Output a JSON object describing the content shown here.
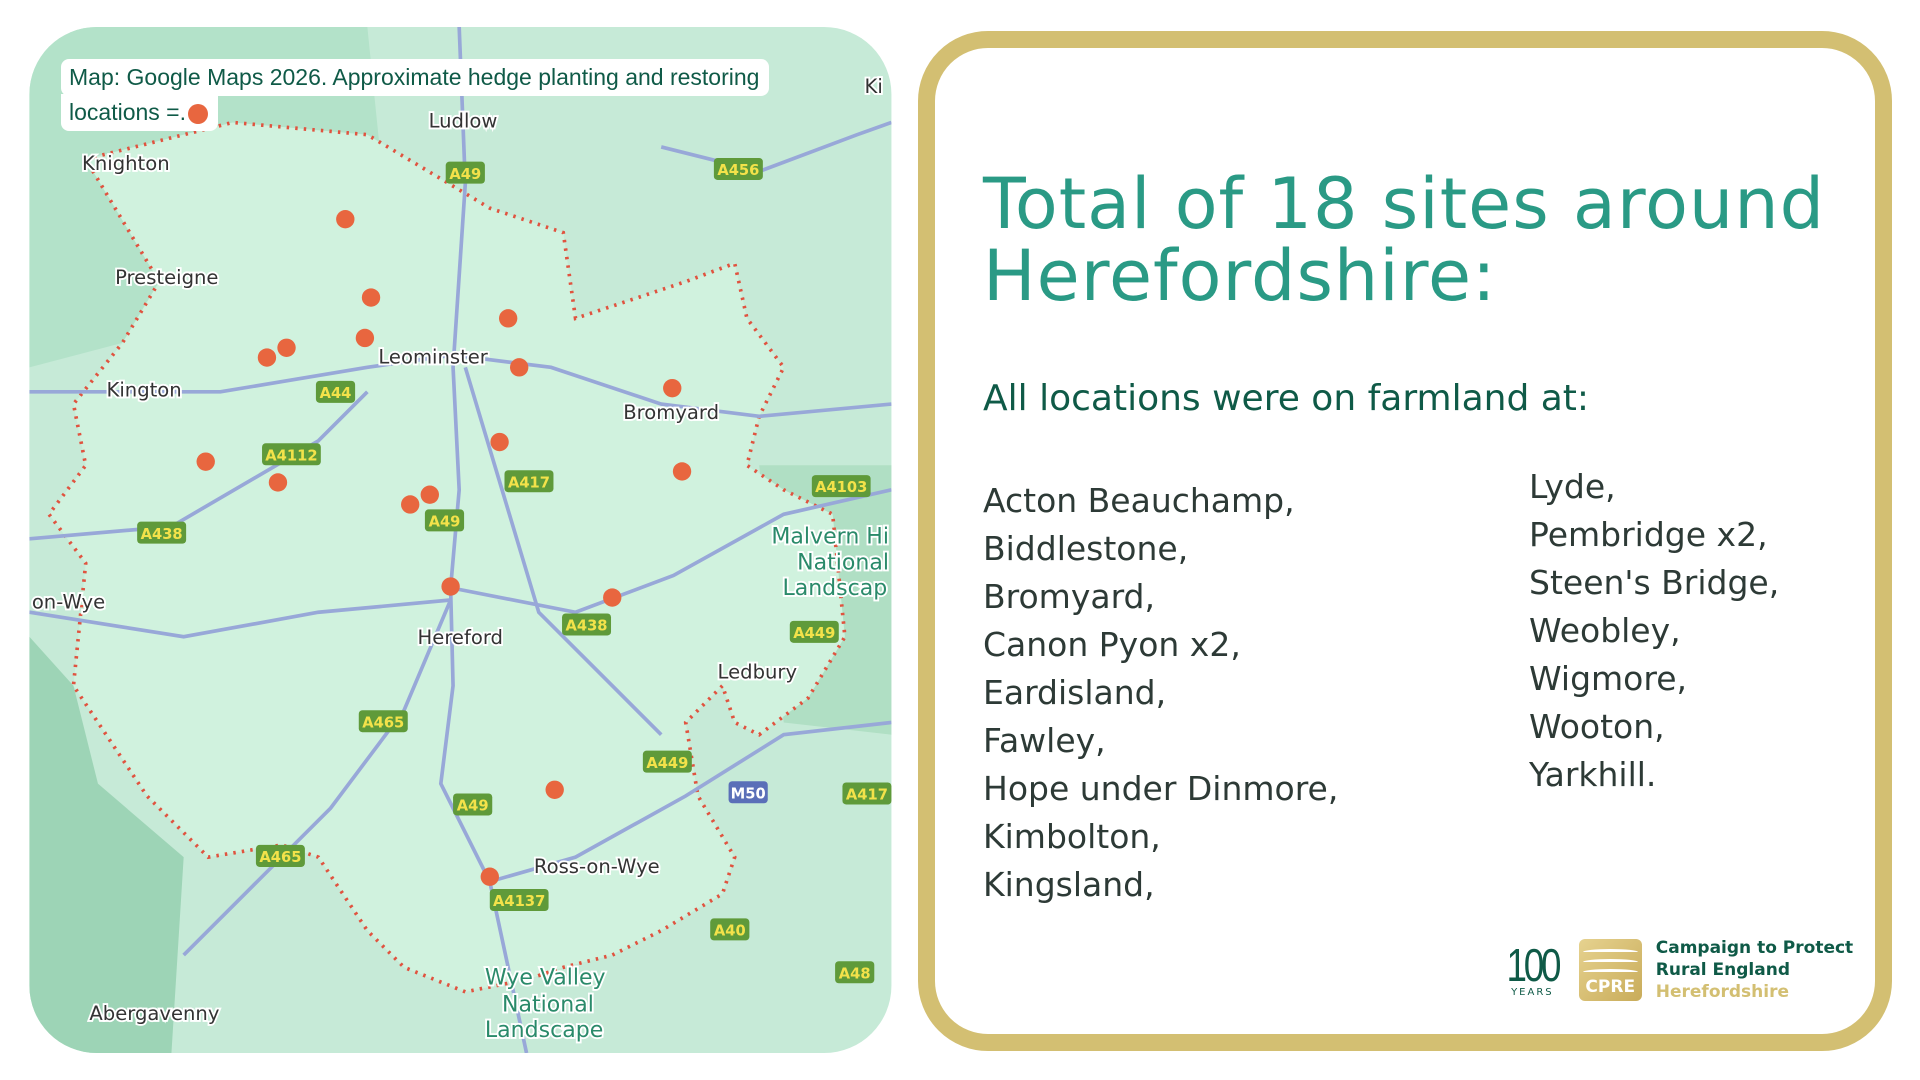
{
  "map": {
    "caption_line1": "Map: Google Maps 2026. Approximate hedge planting and restoring",
    "caption_line2": "locations =.",
    "marker_color": "#e8663f",
    "towns": [
      "Ludlow",
      "Knighton",
      "Presteigne",
      "Kington",
      "Leominster",
      "Bromyard",
      "Hereford",
      "Ledbury",
      "Ross-on-Wye",
      "Abergavenny",
      "on-Wye",
      "Ki",
      "Malvern Hi",
      "National",
      "Landscap",
      "Wye Valley",
      "National",
      "Landscape"
    ],
    "roads": [
      "A49",
      "A456",
      "A44",
      "A4112",
      "A417",
      "A438",
      "A49",
      "A438",
      "A4103",
      "A449",
      "A465",
      "A449",
      "M50",
      "A49",
      "A465",
      "A4137",
      "A417",
      "A40",
      "A48"
    ],
    "site_count": 18
  },
  "panel": {
    "title_line1": "Total of 18 sites around",
    "title_line2": "Herefordshire:",
    "subtitle": "All locations were on farmland at:",
    "column1": [
      "Acton Beauchamp,",
      "Biddlestone,",
      "Bromyard,",
      "Canon Pyon x2,",
      "Eardisland,",
      "Fawley,",
      "Hope under Dinmore,",
      "Kimbolton,",
      "Kingsland,"
    ],
    "column2": [
      "Lyde,",
      "Pembridge x2,",
      "Steen's Bridge,",
      "Weobley,",
      "Wigmore,",
      "Wooton,",
      "Yarkhill."
    ]
  },
  "logo": {
    "hundred": "100",
    "years": "YEARS",
    "cpre": "CPRE",
    "org_line1": "Campaign to Protect",
    "org_line2": "Rural England",
    "org_line3": "Herefordshire"
  },
  "colors": {
    "accent": "#2a9a85",
    "dark_green": "#0f5a47",
    "gold": "#d3bf72"
  }
}
